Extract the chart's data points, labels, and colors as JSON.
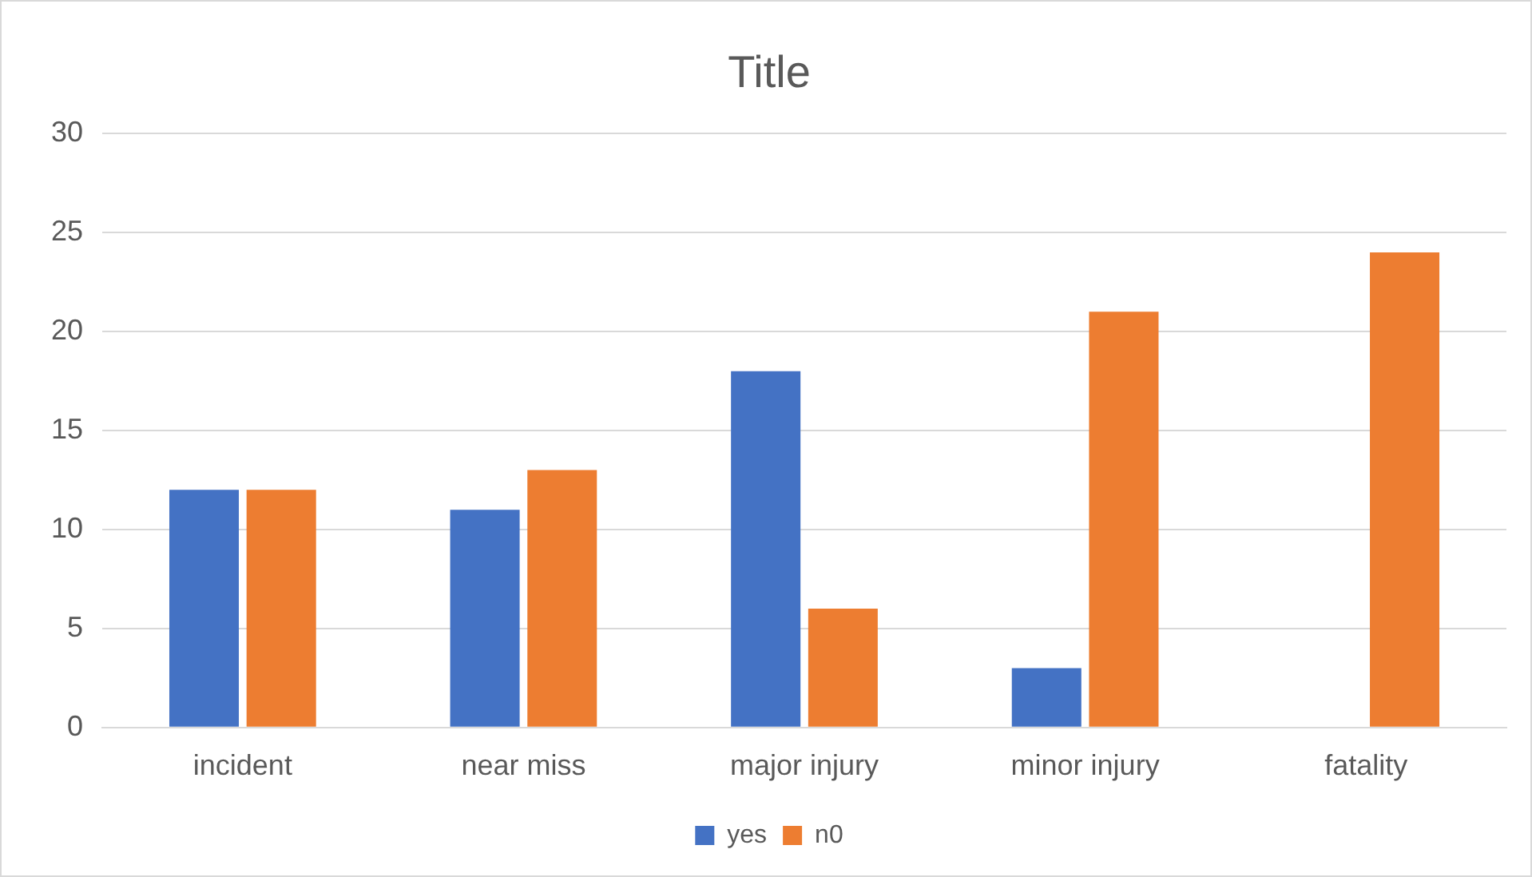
{
  "chart_data": {
    "type": "bar",
    "title": "Title",
    "categories": [
      "incident",
      "near miss",
      "major injury",
      "minor injury",
      "fatality"
    ],
    "series": [
      {
        "name": "yes",
        "color": "#4472c4",
        "values": [
          12,
          11,
          18,
          3,
          0
        ]
      },
      {
        "name": "n0",
        "color": "#ed7d31",
        "values": [
          12,
          13,
          6,
          21,
          24
        ]
      }
    ],
    "ylim": [
      0,
      30
    ],
    "yticks": [
      0,
      5,
      10,
      15,
      20,
      25,
      30
    ],
    "grid": "y",
    "legend": "bottom"
  }
}
